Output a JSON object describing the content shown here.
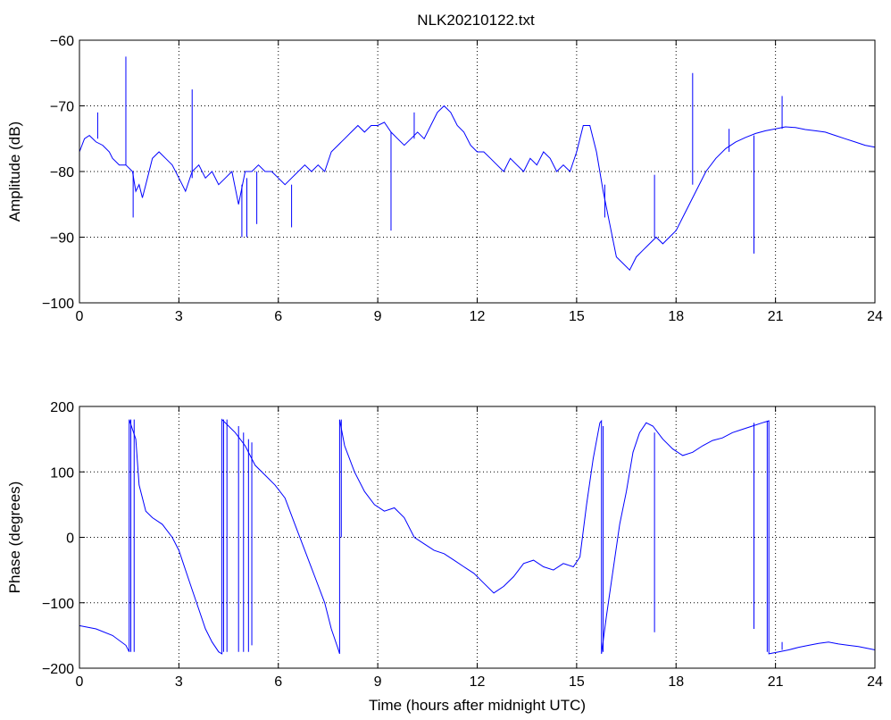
{
  "figure": {
    "title": "NLK20210122.txt"
  },
  "chart_data": [
    {
      "type": "line",
      "panel": "amplitude",
      "title": "NLK20210122.txt",
      "xlabel": "",
      "ylabel": "Amplitude (dB)",
      "xlim": [
        0,
        24
      ],
      "ylim": [
        -100,
        -60
      ],
      "xticks": [
        0,
        3,
        6,
        9,
        12,
        15,
        18,
        21,
        24
      ],
      "yticks": [
        -100,
        -90,
        -80,
        -70,
        -60
      ],
      "xtick_labels": [
        "0",
        "3",
        "6",
        "9",
        "12",
        "15",
        "18",
        "21",
        "24"
      ],
      "ytick_labels": [
        "−100",
        "−90",
        "−80",
        "−70",
        "−60"
      ],
      "grid": true,
      "line_color": "#0000ff",
      "series": [
        {
          "x": [
            0,
            0.15,
            0.3,
            0.5,
            0.7,
            0.9,
            1.0,
            1.2,
            1.4,
            1.6,
            1.7,
            1.8,
            1.9,
            2.0,
            2.2,
            2.4,
            2.6,
            2.8,
            3.0,
            3.2,
            3.4,
            3.6,
            3.8,
            4.0,
            4.2,
            4.4,
            4.6,
            4.8,
            5.0,
            5.2,
            5.4,
            5.6,
            5.8,
            6.0,
            6.2,
            6.4,
            6.6,
            6.8,
            7.0,
            7.2,
            7.4,
            7.6,
            7.8,
            8.0,
            8.2,
            8.4,
            8.6,
            8.8,
            9.0,
            9.2,
            9.4,
            9.6,
            9.8,
            10.0,
            10.2,
            10.4,
            10.6,
            10.8,
            11.0,
            11.2,
            11.4,
            11.6,
            11.8,
            12.0,
            12.2,
            12.4,
            12.6,
            12.8,
            13.0,
            13.2,
            13.4,
            13.6,
            13.8,
            14.0,
            14.2,
            14.4,
            14.6,
            14.8,
            15.0,
            15.2,
            15.4,
            15.6,
            15.8,
            16.0,
            16.2,
            16.4,
            16.6,
            16.8,
            17.0,
            17.2,
            17.4,
            17.6,
            17.8,
            18.0,
            18.3,
            18.6,
            18.9,
            19.2,
            19.5,
            19.8,
            20.1,
            20.4,
            20.7,
            21.0,
            21.3,
            21.6,
            21.9,
            22.2,
            22.5,
            22.8,
            23.1,
            23.4,
            23.7,
            24.0
          ],
          "y": [
            -77,
            -75,
            -74.5,
            -75.5,
            -76,
            -77,
            -78,
            -79,
            -79,
            -80,
            -83,
            -82,
            -84,
            -82,
            -78,
            -77,
            -78,
            -79,
            -81,
            -83,
            -80,
            -79,
            -81,
            -80,
            -82,
            -81,
            -80,
            -85,
            -80,
            -80,
            -79,
            -80,
            -80,
            -81,
            -82,
            -81,
            -80,
            -79,
            -80,
            -79,
            -80,
            -77,
            -76,
            -75,
            -74,
            -73,
            -74,
            -73,
            -73,
            -72.5,
            -74,
            -75,
            -76,
            -75,
            -74,
            -75,
            -73,
            -71,
            -70,
            -71,
            -73,
            -74,
            -76,
            -77,
            -77,
            -78,
            -79,
            -80,
            -78,
            -79,
            -80,
            -78,
            -79,
            -77,
            -78,
            -80,
            -79,
            -80,
            -77,
            -73,
            -73,
            -77,
            -83,
            -88,
            -93,
            -94,
            -95,
            -93,
            -92,
            -91,
            -90,
            -91,
            -90,
            -89,
            -86,
            -83,
            -80,
            -78,
            -76.5,
            -75.5,
            -74.8,
            -74.2,
            -73.8,
            -73.5,
            -73.2,
            -73.3,
            -73.6,
            -73.8,
            -74,
            -74.5,
            -75,
            -75.5,
            -76,
            -76.3
          ]
        }
      ],
      "spikes": [
        {
          "x": 0.55,
          "y_from": -75,
          "y_to": -71
        },
        {
          "x": 1.4,
          "y_from": -79,
          "y_to": -62.5
        },
        {
          "x": 1.62,
          "y_from": -80,
          "y_to": -87
        },
        {
          "x": 3.4,
          "y_from": -81,
          "y_to": -67.5
        },
        {
          "x": 4.9,
          "y_from": -82,
          "y_to": -90
        },
        {
          "x": 5.05,
          "y_from": -81,
          "y_to": -90
        },
        {
          "x": 5.35,
          "y_from": -80,
          "y_to": -88
        },
        {
          "x": 6.4,
          "y_from": -82,
          "y_to": -88.5
        },
        {
          "x": 9.4,
          "y_from": -74,
          "y_to": -89
        },
        {
          "x": 10.1,
          "y_from": -75,
          "y_to": -71
        },
        {
          "x": 15.85,
          "y_from": -82,
          "y_to": -87
        },
        {
          "x": 17.35,
          "y_from": -90,
          "y_to": -80.5
        },
        {
          "x": 18.5,
          "y_from": -82,
          "y_to": -65
        },
        {
          "x": 19.6,
          "y_from": -77,
          "y_to": -73.5
        },
        {
          "x": 20.35,
          "y_from": -74.5,
          "y_to": -92.5
        },
        {
          "x": 21.2,
          "y_from": -73.5,
          "y_to": -68.5
        }
      ]
    },
    {
      "type": "line",
      "panel": "phase",
      "title": "",
      "xlabel": "Time (hours after midnight UTC)",
      "ylabel": "Phase (degrees)",
      "xlim": [
        0,
        24
      ],
      "ylim": [
        -200,
        200
      ],
      "xticks": [
        0,
        3,
        6,
        9,
        12,
        15,
        18,
        21,
        24
      ],
      "yticks": [
        -200,
        -100,
        0,
        100,
        200
      ],
      "xtick_labels": [
        "0",
        "3",
        "6",
        "9",
        "12",
        "15",
        "18",
        "21",
        "24"
      ],
      "ytick_labels": [
        "−200",
        "−100",
        "0",
        "100",
        "200"
      ],
      "grid": true,
      "line_color": "#0000ff",
      "series": [
        {
          "x": [
            0,
            0.5,
            1.0,
            1.4,
            1.5,
            1.5,
            1.7,
            1.8,
            2.0,
            2.2,
            2.5,
            2.8,
            3.0,
            3.2,
            3.4,
            3.6,
            3.8,
            4.0,
            4.2,
            4.3,
            4.3,
            4.5,
            4.7,
            5.0,
            5.3,
            5.6,
            5.9,
            6.2,
            6.5,
            6.8,
            7.1,
            7.4,
            7.6,
            7.8,
            7.85,
            7.85,
            8.0,
            8.3,
            8.6,
            8.9,
            9.2,
            9.5,
            9.8,
            10.1,
            10.4,
            10.7,
            11.0,
            11.3,
            11.6,
            11.9,
            12.2,
            12.5,
            12.8,
            13.1,
            13.4,
            13.7,
            14.0,
            14.3,
            14.6,
            14.9,
            15.1,
            15.3,
            15.5,
            15.7,
            15.75,
            15.75,
            15.9,
            16.1,
            16.3,
            16.5,
            16.7,
            16.9,
            17.1,
            17.3,
            17.6,
            17.9,
            18.2,
            18.5,
            18.8,
            19.1,
            19.4,
            19.7,
            20.0,
            20.3,
            20.6,
            20.8,
            20.8,
            21.1,
            21.4,
            21.7,
            22.0,
            22.3,
            22.6,
            22.9,
            23.2,
            23.5,
            23.8,
            24.0
          ],
          "y": [
            -135,
            -140,
            -150,
            -165,
            -175,
            180,
            150,
            80,
            40,
            30,
            20,
            0,
            -20,
            -50,
            -80,
            -110,
            -140,
            -160,
            -175,
            -178,
            180,
            170,
            160,
            140,
            110,
            95,
            80,
            60,
            20,
            -20,
            -60,
            -100,
            -140,
            -170,
            -178,
            180,
            140,
            100,
            70,
            50,
            40,
            45,
            30,
            0,
            -10,
            -20,
            -25,
            -35,
            -45,
            -55,
            -70,
            -85,
            -75,
            -60,
            -40,
            -35,
            -45,
            -50,
            -40,
            -45,
            -30,
            50,
            120,
            175,
            178,
            -178,
            -120,
            -50,
            20,
            70,
            130,
            160,
            175,
            170,
            150,
            135,
            125,
            130,
            140,
            148,
            152,
            160,
            165,
            170,
            175,
            178,
            -178,
            -175,
            -172,
            -168,
            -165,
            -162,
            -160,
            -163,
            -165,
            -167,
            -170,
            -172
          ]
        }
      ],
      "spikes": [
        {
          "x": 1.55,
          "y_from": -175,
          "y_to": 180
        },
        {
          "x": 1.65,
          "y_from": -175,
          "y_to": 180
        },
        {
          "x": 4.35,
          "y_from": -175,
          "y_to": 180
        },
        {
          "x": 4.45,
          "y_from": -175,
          "y_to": 180
        },
        {
          "x": 4.8,
          "y_from": 170,
          "y_to": -175
        },
        {
          "x": 4.95,
          "y_from": 160,
          "y_to": -175
        },
        {
          "x": 5.1,
          "y_from": 150,
          "y_to": -175
        },
        {
          "x": 5.2,
          "y_from": 145,
          "y_to": -165
        },
        {
          "x": 7.9,
          "y_from": 180,
          "y_to": 0
        },
        {
          "x": 15.8,
          "y_from": 170,
          "y_to": -175
        },
        {
          "x": 17.35,
          "y_from": 160,
          "y_to": -145
        },
        {
          "x": 20.35,
          "y_from": 175,
          "y_to": -140
        },
        {
          "x": 20.75,
          "y_from": 178,
          "y_to": -175
        },
        {
          "x": 21.2,
          "y_from": -172,
          "y_to": -160
        }
      ]
    }
  ]
}
